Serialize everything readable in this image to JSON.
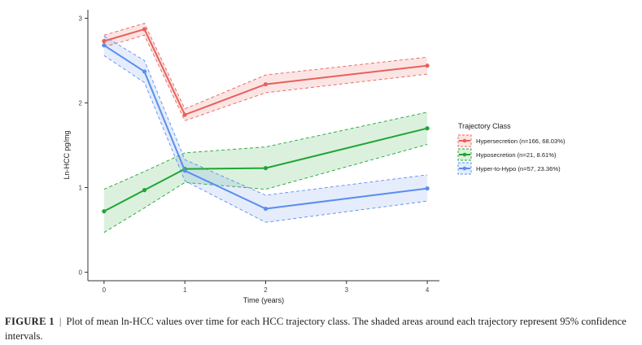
{
  "chart_data": {
    "type": "line",
    "x": [
      0,
      0.5,
      1,
      2,
      4
    ],
    "xlim": [
      -0.2,
      4.15
    ],
    "ylim": [
      -0.1,
      3.1
    ],
    "xticks": [
      0,
      1,
      2,
      3,
      4
    ],
    "yticks": [
      0,
      1,
      2,
      3
    ],
    "xlabel": "Time (years)",
    "ylabel": "Ln-HCC pg/mg",
    "legend_title": "Trajectory Class",
    "legend_position": "right",
    "grid": false,
    "series": [
      {
        "name": "Hypersecretion (n=166, 68.03%)",
        "color": "#E9605A",
        "values": [
          2.73,
          2.87,
          1.86,
          2.22,
          2.44
        ],
        "ci_upper": [
          2.8,
          2.94,
          1.93,
          2.33,
          2.54
        ],
        "ci_lower": [
          2.66,
          2.8,
          1.79,
          2.12,
          2.34
        ]
      },
      {
        "name": "Hyposecretion (n=21, 8.61%)",
        "color": "#20A534",
        "values": [
          0.72,
          0.97,
          1.22,
          1.23,
          1.7
        ],
        "ci_upper": [
          0.98,
          1.19,
          1.41,
          1.48,
          1.89
        ],
        "ci_lower": [
          0.47,
          0.76,
          1.06,
          0.98,
          1.51
        ]
      },
      {
        "name": "Hyper-to-Hypo (n=57, 23.36%)",
        "color": "#5B8DEF",
        "values": [
          2.68,
          2.37,
          1.2,
          0.75,
          0.99
        ],
        "ci_upper": [
          2.79,
          2.5,
          1.33,
          0.91,
          1.15
        ],
        "ci_lower": [
          2.56,
          2.24,
          1.08,
          0.59,
          0.84
        ]
      }
    ]
  },
  "caption": {
    "label": "FIGURE 1",
    "separator": "|",
    "text": "Plot of mean ln-HCC values over time for each HCC trajectory class. The shaded areas around each trajectory represent 95% confidence intervals."
  }
}
